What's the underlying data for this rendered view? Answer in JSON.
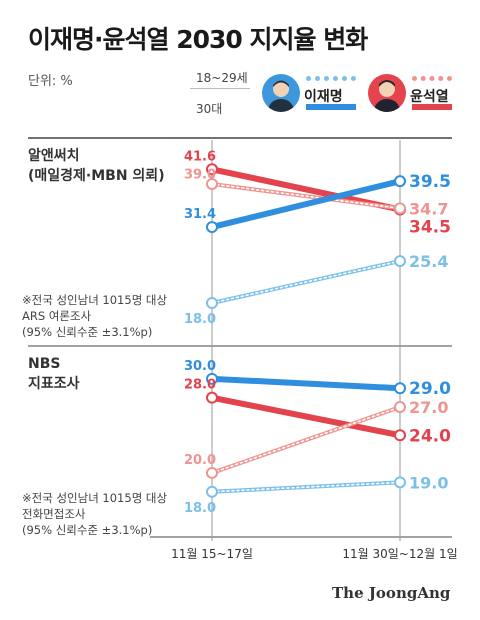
{
  "title": "이재명·윤석열 2030 지지율 변화",
  "unit_label": "단위: %",
  "legend": {
    "ages": [
      "18~29세",
      "30대"
    ],
    "candidates": [
      {
        "name": "이재명",
        "color": "#2f8fde",
        "avatar_icon": "lee-jae-myung-portrait-icon"
      },
      {
        "name": "윤석열",
        "color": "#e2434c",
        "avatar_icon": "yoon-suk-yeol-portrait-icon"
      }
    ]
  },
  "brand": "The JoongAng",
  "colors": {
    "lee_30s": "#2f8fde",
    "lee_20s": "#7cc0ea",
    "yoon_30s": "#e2434c",
    "yoon_20s": "#ee9591",
    "divider": "#444444"
  },
  "sections": [
    {
      "label_lines": [
        "알앤써치",
        "(매일경제·MBN 의뢰)"
      ],
      "note_lines": [
        "※전국 성인남녀 1015명 대상",
        "ARS 여론조사",
        "(95% 신뢰수준 ±3.1%p)"
      ]
    },
    {
      "label_lines": [
        "NBS",
        "지표조사"
      ],
      "note_lines": [
        "※전국 성인남녀 1015명 대상",
        "전화면접조사",
        "(95% 신뢰수준 ±3.1%p)"
      ]
    }
  ],
  "chart_data": [
    {
      "type": "line",
      "source": "알앤써치 (매일경제·MBN 의뢰)",
      "categories": [
        "11월 15~17일",
        "11월 30일~12월 1일"
      ],
      "ylim": [
        15,
        45
      ],
      "series": [
        {
          "candidate": "윤석열",
          "age": "30대",
          "values": [
            41.6,
            34.5
          ],
          "labels": [
            "41.6",
            "34.5"
          ]
        },
        {
          "candidate": "윤석열",
          "age": "18~29세",
          "values": [
            39.0,
            34.7
          ],
          "labels": [
            "39.0",
            "34.7"
          ]
        },
        {
          "candidate": "이재명",
          "age": "30대",
          "values": [
            31.4,
            39.5
          ],
          "labels": [
            "31.4",
            "39.5"
          ]
        },
        {
          "candidate": "이재명",
          "age": "18~29세",
          "values": [
            18.0,
            25.4
          ],
          "labels": [
            "18.0",
            "25.4"
          ]
        }
      ]
    },
    {
      "type": "line",
      "source": "NBS 지표조사",
      "categories": [
        "11월 15~17일",
        "11월 30일~12월 1일"
      ],
      "ylim": [
        15,
        32
      ],
      "series": [
        {
          "candidate": "이재명",
          "age": "30대",
          "values": [
            30.0,
            29.0
          ],
          "labels": [
            "30.0",
            "29.0"
          ]
        },
        {
          "candidate": "윤석열",
          "age": "30대",
          "values": [
            28.0,
            24.0
          ],
          "labels": [
            "28.0",
            "24.0"
          ]
        },
        {
          "candidate": "윤석열",
          "age": "18~29세",
          "values": [
            20.0,
            27.0
          ],
          "labels": [
            "20.0",
            "27.0"
          ]
        },
        {
          "candidate": "이재명",
          "age": "18~29세",
          "values": [
            18.0,
            19.0
          ],
          "labels": [
            "18.0",
            "19.0"
          ]
        }
      ]
    }
  ]
}
